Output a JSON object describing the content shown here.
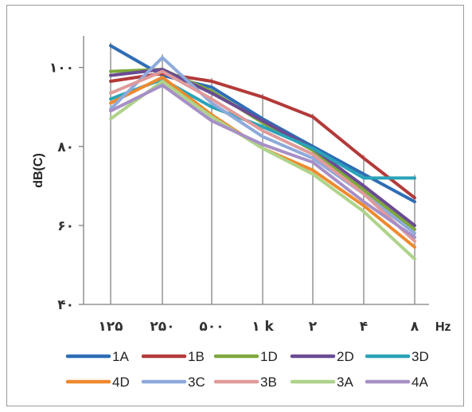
{
  "chart_data": {
    "type": "line",
    "title": "",
    "xlabel": "Hz",
    "ylabel": "dB(C)",
    "categories": [
      "۱۲۵",
      "۲۵۰",
      "۵۰۰",
      "۱ k",
      "۲",
      "۴",
      "۸"
    ],
    "y_ticks": [
      "۴۰",
      "۶۰",
      "۸۰",
      "۱۰۰"
    ],
    "y_tick_values": [
      40,
      60,
      80,
      100
    ],
    "ylim": [
      40,
      108
    ],
    "grid": "vertical lines at categories",
    "legend_position": "bottom",
    "series": [
      {
        "name": "1A",
        "color": "#2e6db4",
        "values": [
          105.5,
          98,
          95,
          87,
          80,
          73,
          66
        ]
      },
      {
        "name": "1B",
        "color": "#b33a3a",
        "values": [
          96.5,
          98.5,
          96.5,
          92.5,
          87.5,
          77,
          67
        ]
      },
      {
        "name": "1D",
        "color": "#7ea83b",
        "values": [
          99,
          99.5,
          94,
          86,
          79,
          69,
          59
        ]
      },
      {
        "name": "2D",
        "color": "#6a4b93",
        "values": [
          98,
          99.5,
          93.5,
          86.5,
          79.5,
          70,
          60
        ]
      },
      {
        "name": "3D",
        "color": "#2aa3b8",
        "values": [
          92,
          97,
          90,
          85,
          79.5,
          72,
          72
        ]
      },
      {
        "name": "4D",
        "color": "#ee8a2f",
        "values": [
          91,
          97.5,
          88,
          79.5,
          74,
          65,
          54.5
        ]
      },
      {
        "name": "3C",
        "color": "#8eaadc",
        "values": [
          89.5,
          102.5,
          91,
          82.5,
          77,
          68,
          58
        ]
      },
      {
        "name": "3B",
        "color": "#e09a9a",
        "values": [
          93.5,
          99,
          92,
          84,
          78,
          68,
          56
        ]
      },
      {
        "name": "3A",
        "color": "#aed38a",
        "values": [
          87,
          96.5,
          87.5,
          79.5,
          73,
          63.5,
          51.5
        ]
      },
      {
        "name": "4A",
        "color": "#a68fc6",
        "values": [
          89,
          95.5,
          86.5,
          80.5,
          76,
          66,
          57
        ]
      }
    ]
  }
}
